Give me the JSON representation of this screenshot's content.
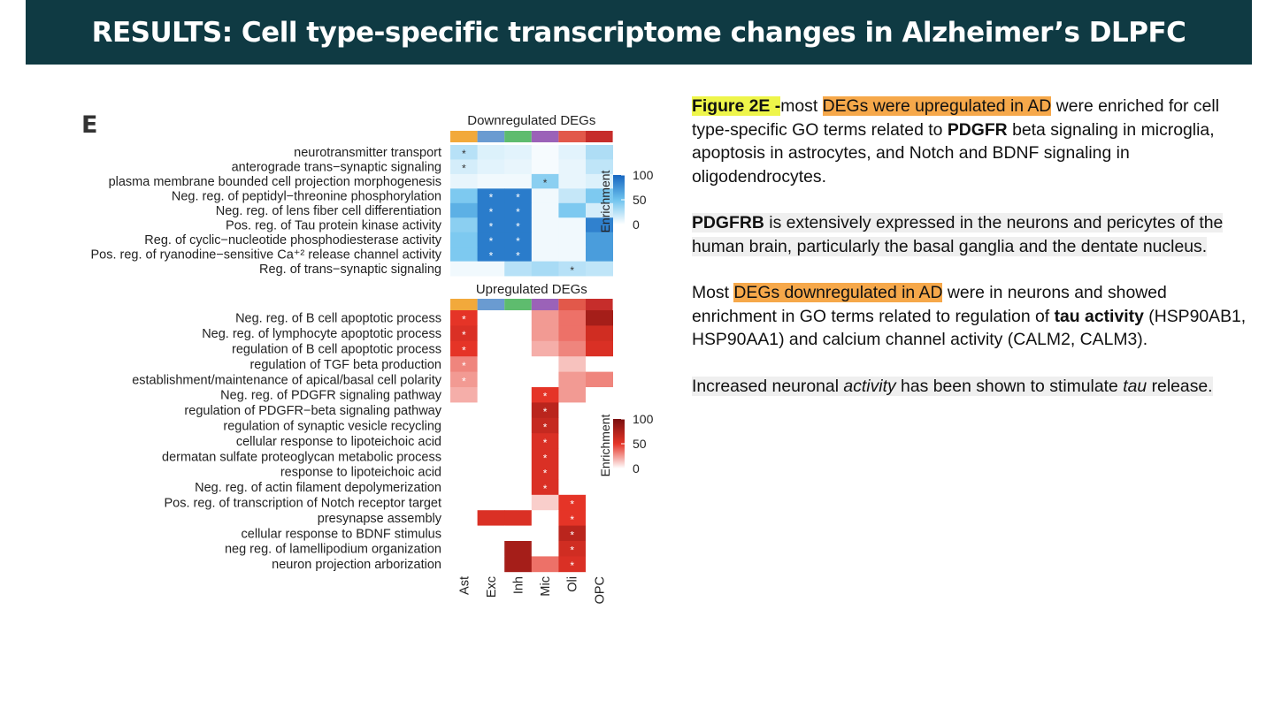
{
  "banner": {
    "title": "RESULTS: Cell type-specific transcriptome changes in Alzheimer’s DLPFC"
  },
  "figure": {
    "panel_label": "E"
  },
  "text": {
    "p1": {
      "fig_ref": "Figure 2E -",
      "a": "most ",
      "hl": "DEGs were upregulated in AD",
      "b": " were enriched for cell type-specific GO terms related to ",
      "bold": "PDGFR",
      "c": " beta signaling in microglia, apoptosis in astrocytes, and Notch and BDNF signaling in oligodendrocytes."
    },
    "p2": {
      "bold": "PDGFRB",
      "rest": " is extensively expressed in the neurons and pericytes of the human brain, particularly the basal ganglia and the dentate nucleus."
    },
    "p3": {
      "a": "Most ",
      "hl": "DEGs downregulated in AD",
      "b": " were in neurons and showed enrichment in GO terms related to regulation of ",
      "bold": "tau activity",
      "c": " (HSP90AB1, HSP90AA1) and calcium channel activity (CALM2, CALM3)."
    },
    "p4": {
      "a": "Increased neuronal ",
      "it1": "activity",
      "b": " has been shown to stimulate ",
      "it2": "tau",
      "c": " release."
    }
  },
  "chart_data": [
    {
      "type": "heatmap",
      "title": "Downregulated DEGs",
      "colorbar_label": "Enrichment",
      "colorbar_ticks": [
        100,
        50,
        0
      ],
      "colorscale": [
        "#ffffff",
        "#1565c0"
      ],
      "cell_types": [
        "Ast",
        "Exc",
        "Inh",
        "Mic",
        "Oli",
        "OPC"
      ],
      "cell_type_colors": [
        "#f2a93b",
        "#6a9bd1",
        "#5ebc6e",
        "#9b62b8",
        "#e2584a",
        "#c62d2b"
      ],
      "terms": [
        "neurotransmitter transport",
        "anterograde trans−synaptic signaling",
        "plasma membrane bounded cell projection morphogenesis",
        "Neg. reg. of peptidyl−threonine phosphorylation",
        "Neg. reg. of lens fiber cell differentiation",
        "Pos. reg. of Tau protein kinase activity",
        "Reg. of cyclic−nucleotide phosphodiesterase activity",
        "Pos. reg. of ryanodine−sensitive Ca⁺² release channel activity",
        "Reg. of trans−synaptic signaling"
      ],
      "values": [
        [
          25,
          12,
          10,
          3,
          10,
          28
        ],
        [
          15,
          10,
          8,
          3,
          8,
          22
        ],
        [
          8,
          5,
          5,
          40,
          8,
          12
        ],
        [
          45,
          88,
          88,
          5,
          20,
          45
        ],
        [
          60,
          88,
          88,
          5,
          45,
          15
        ],
        [
          40,
          88,
          88,
          5,
          5,
          85
        ],
        [
          45,
          88,
          88,
          5,
          5,
          70
        ],
        [
          45,
          88,
          88,
          5,
          5,
          70
        ],
        [
          5,
          5,
          25,
          30,
          25,
          22
        ]
      ],
      "significant": [
        [
          0,
          0
        ],
        [
          1,
          0
        ],
        [
          2,
          3
        ],
        [
          3,
          1
        ],
        [
          3,
          2
        ],
        [
          4,
          1
        ],
        [
          4,
          2
        ],
        [
          5,
          1
        ],
        [
          5,
          2
        ],
        [
          6,
          1
        ],
        [
          6,
          2
        ],
        [
          7,
          1
        ],
        [
          7,
          2
        ],
        [
          8,
          4
        ]
      ]
    },
    {
      "type": "heatmap",
      "title": "Upregulated DEGs",
      "colorbar_label": "Enrichment",
      "colorbar_ticks": [
        100,
        50,
        0
      ],
      "colorscale": [
        "#ffffff",
        "#e53427",
        "#7a0f0f"
      ],
      "cell_types": [
        "Ast",
        "Exc",
        "Inh",
        "Mic",
        "Oli",
        "OPC"
      ],
      "cell_type_colors": [
        "#f2a93b",
        "#6a9bd1",
        "#5ebc6e",
        "#9b62b8",
        "#e2584a",
        "#c62d2b"
      ],
      "terms": [
        "Neg. reg. of B cell apoptotic process",
        "Neg. reg. of lymphocyte apoptotic process",
        "regulation of B cell apoptotic process",
        "regulation of TGF beta production",
        "establishment/maintenance of apical/basal cell polarity",
        "Neg. reg. of PDGFR signaling pathway",
        "regulation of PDGFR−beta signaling pathway",
        "regulation of synaptic vesicle recycling",
        "cellular response to lipoteichoic acid",
        "dermatan sulfate proteoglycan metabolic process",
        "response to lipoteichoic acid",
        "Neg. reg. of actin filament depolymerization",
        "Pos. reg. of transcription of Notch receptor target",
        "presynapse assembly",
        "cellular response to BDNF stimulus",
        "neg reg. of lamellipodium organization",
        "neuron projection arborization"
      ],
      "values": [
        [
          50,
          0,
          0,
          25,
          35,
          80
        ],
        [
          55,
          0,
          0,
          25,
          35,
          60
        ],
        [
          50,
          0,
          0,
          20,
          30,
          55
        ],
        [
          30,
          0,
          0,
          0,
          15,
          0
        ],
        [
          25,
          0,
          0,
          0,
          25,
          30
        ],
        [
          20,
          0,
          0,
          50,
          25,
          0
        ],
        [
          0,
          0,
          0,
          70,
          0,
          0
        ],
        [
          0,
          0,
          0,
          65,
          0,
          0
        ],
        [
          0,
          0,
          0,
          55,
          0,
          0
        ],
        [
          0,
          0,
          0,
          55,
          0,
          0
        ],
        [
          0,
          0,
          0,
          55,
          0,
          0
        ],
        [
          0,
          0,
          0,
          55,
          0,
          0
        ],
        [
          0,
          0,
          0,
          12,
          50,
          0
        ],
        [
          0,
          55,
          55,
          0,
          50,
          0
        ],
        [
          0,
          0,
          0,
          0,
          70,
          0
        ],
        [
          0,
          0,
          80,
          0,
          60,
          0
        ],
        [
          0,
          0,
          80,
          35,
          55,
          0
        ]
      ],
      "significant": [
        [
          0,
          0
        ],
        [
          1,
          0
        ],
        [
          2,
          0
        ],
        [
          3,
          0
        ],
        [
          4,
          0
        ],
        [
          5,
          3
        ],
        [
          6,
          3
        ],
        [
          7,
          3
        ],
        [
          8,
          3
        ],
        [
          9,
          3
        ],
        [
          10,
          3
        ],
        [
          11,
          3
        ],
        [
          12,
          4
        ],
        [
          13,
          4
        ],
        [
          14,
          4
        ],
        [
          15,
          4
        ],
        [
          16,
          4
        ]
      ]
    }
  ]
}
